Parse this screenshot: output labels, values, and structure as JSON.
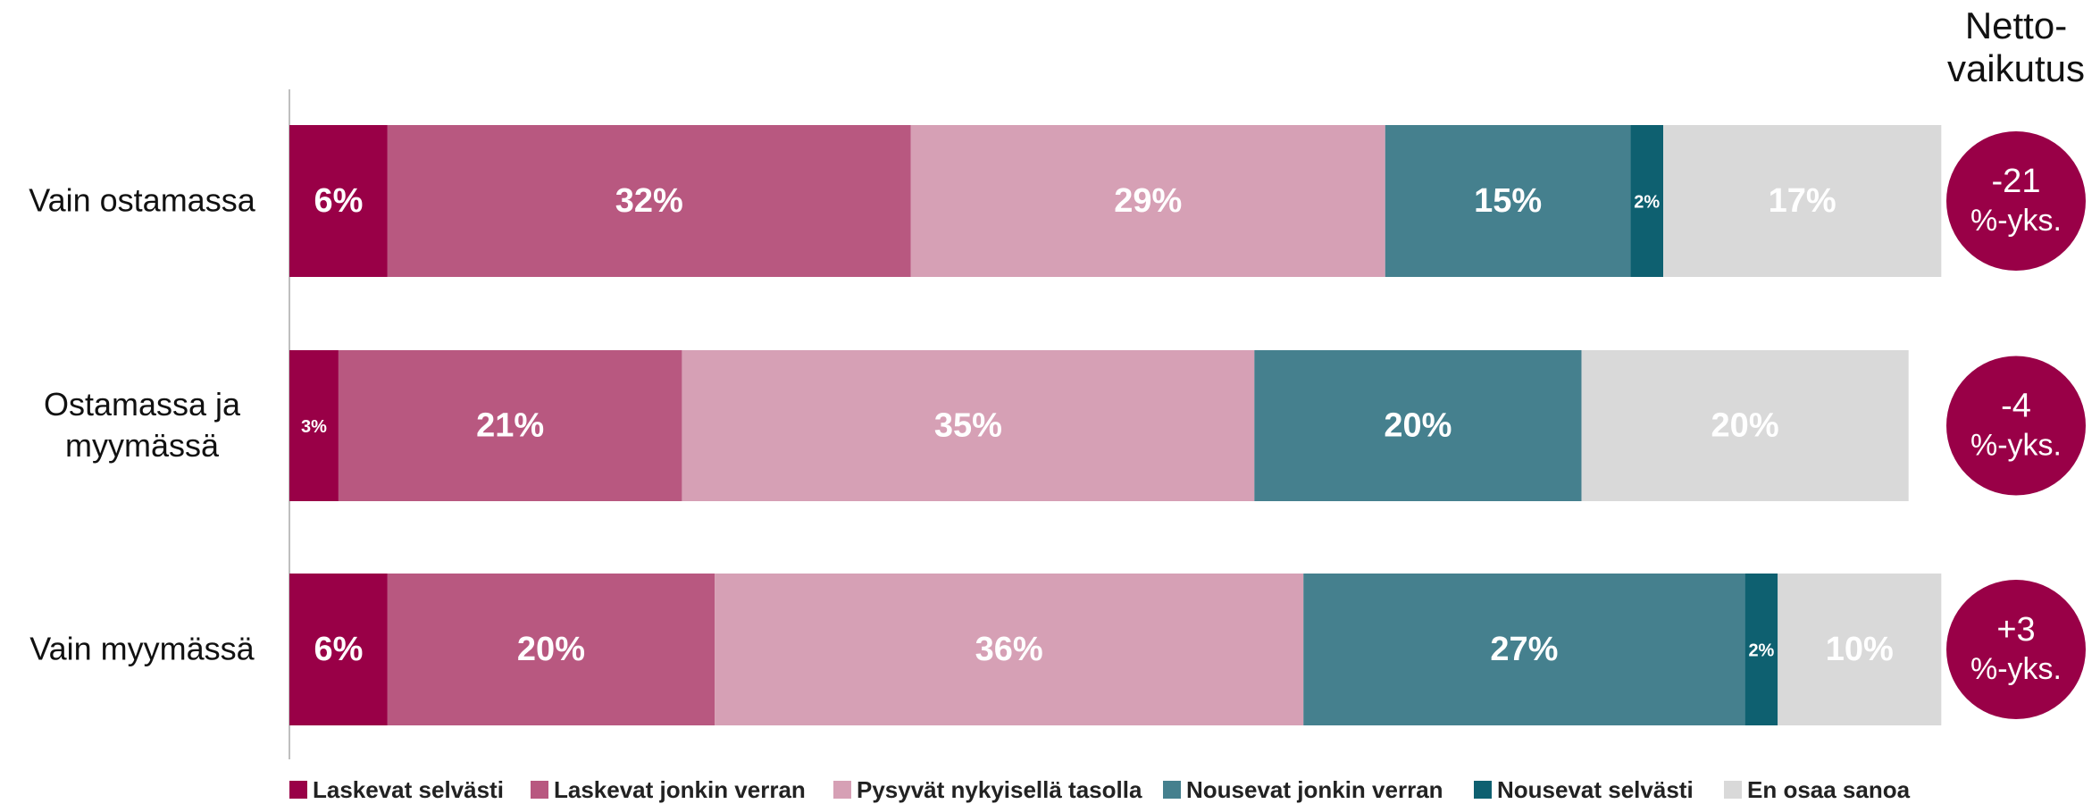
{
  "chart_data": {
    "type": "stacked-bar-horizontal",
    "categories": [
      "Vain ostamassa",
      "Ostamassa ja myymässä",
      "Vain myymässä"
    ],
    "xlim": [
      0,
      100
    ],
    "legend": "bottom",
    "series": [
      {
        "name": "Laskevat selvästi",
        "color": "#990047",
        "values": [
          6,
          3,
          6
        ],
        "value_labels": [
          "6%",
          "3%",
          "6%"
        ]
      },
      {
        "name": "Laskevat jonkin verran",
        "color": "#b85880",
        "values": [
          32,
          21,
          20
        ],
        "value_labels": [
          "32%",
          "21%",
          "20%"
        ]
      },
      {
        "name": "Pysyvät nykyisellä tasolla",
        "color": "#d6a0b5",
        "values": [
          29,
          35,
          36
        ],
        "value_labels": [
          "29%",
          "35%",
          "36%"
        ]
      },
      {
        "name": "Nousevat jonkin verran",
        "color": "#45808e",
        "values": [
          15,
          20,
          27
        ],
        "value_labels": [
          "15%",
          "20%",
          "27%"
        ]
      },
      {
        "name": "Nousevat selvästi",
        "color": "#0e6070",
        "values": [
          2,
          null,
          2
        ],
        "value_labels": [
          "2%",
          null,
          "2%"
        ]
      },
      {
        "name": "En osaa sanoa",
        "color": "#d9d9d9",
        "values": [
          17,
          20,
          10
        ],
        "value_labels": [
          "17%",
          "20%",
          "10%"
        ]
      }
    ],
    "net": {
      "title_lines": [
        "Netto-",
        "vaikutus"
      ],
      "color": "#990047",
      "values": [
        -21,
        -4,
        3
      ],
      "value_labels": [
        "-21",
        "-4",
        "+3"
      ],
      "unit": "%-yks."
    }
  }
}
